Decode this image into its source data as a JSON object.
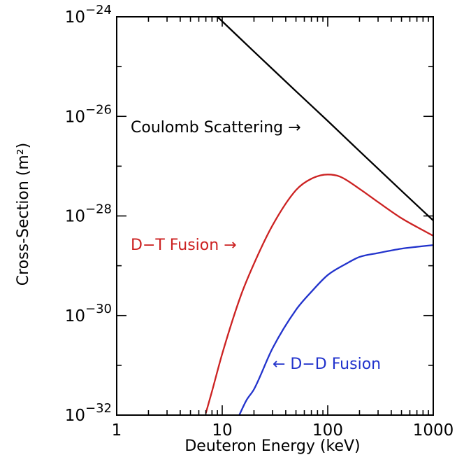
{
  "chart_data": {
    "type": "line",
    "title": "",
    "xlabel": "Deuteron Energy (keV)",
    "ylabel": "Cross-Section (m²)",
    "xscale": "log",
    "yscale": "log",
    "xlim": [
      1,
      1000
    ],
    "ylim": [
      1e-32,
      1e-24
    ],
    "x_ticks": [
      {
        "value": 1,
        "label": "1"
      },
      {
        "value": 10,
        "label": "10"
      },
      {
        "value": 100,
        "label": "100"
      },
      {
        "value": 1000,
        "label": "1000"
      }
    ],
    "y_ticks": [
      {
        "value": 1e-24,
        "base": "10",
        "exp": "−24"
      },
      {
        "value": 1e-26,
        "base": "10",
        "exp": "−26"
      },
      {
        "value": 1e-28,
        "base": "10",
        "exp": "−28"
      },
      {
        "value": 1e-30,
        "base": "10",
        "exp": "−30"
      },
      {
        "value": 1e-32,
        "base": "10",
        "exp": "−32"
      }
    ],
    "grid": false,
    "series": [
      {
        "name": "Coulomb Scattering",
        "label": "Coulomb Scattering →",
        "color": "#000000",
        "x": [
          9.0,
          10,
          20,
          50,
          100,
          200,
          500,
          1000
        ],
        "y": [
          1e-24,
          8.1e-25,
          2e-25,
          3.2e-26,
          8.1e-27,
          2e-27,
          3.2e-28,
          8.1e-29
        ]
      },
      {
        "name": "D-T Fusion",
        "label": "D−T Fusion →",
        "color": "#cc2222",
        "x": [
          7,
          8,
          10,
          15,
          20,
          30,
          50,
          70,
          100,
          130,
          200,
          300,
          500,
          700,
          1000
        ],
        "y": [
          1.1e-32,
          3e-32,
          1.7e-31,
          2.5e-30,
          1.1e-29,
          6.5e-29,
          3.3e-28,
          5.6e-28,
          6.8e-28,
          6.2e-28,
          3.5e-28,
          1.9e-28,
          9e-29,
          6e-29,
          4e-29
        ]
      },
      {
        "name": "D-D Fusion",
        "label": "← D−D Fusion",
        "color": "#2233cc",
        "x": [
          14.5,
          17,
          20,
          30,
          50,
          70,
          100,
          150,
          200,
          300,
          500,
          700,
          1000
        ],
        "y": [
          1e-32,
          2e-32,
          3.3e-32,
          2.2e-31,
          1.3e-30,
          3e-30,
          6.5e-30,
          1.1e-29,
          1.5e-29,
          1.8e-29,
          2.2e-29,
          2.4e-29,
          2.6e-29
        ]
      }
    ]
  }
}
